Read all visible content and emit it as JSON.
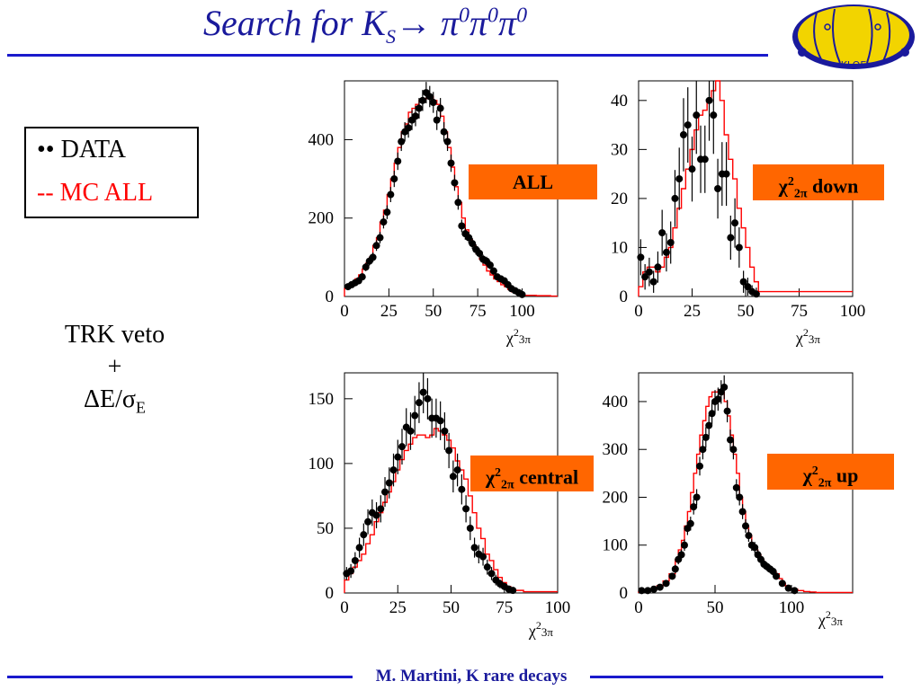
{
  "title": {
    "prefix": "Search for K",
    "sub": "S",
    "arrow": "→",
    "pi1": " π",
    "sup1": "0",
    "pi2": "π",
    "sup2": "0",
    "pi3": "π",
    "sup3": "0"
  },
  "logo": {
    "text": "KLOE"
  },
  "legend": {
    "data_label": "•• DATA",
    "mc_label": "--  MC ALL"
  },
  "selection": {
    "line1": "TRK veto",
    "line2": "+",
    "line3_prefix": "ΔE/σ",
    "line3_sub": "E"
  },
  "footer": {
    "text": "M. Martini, K rare decays"
  },
  "colors": {
    "title": "#1a1a9c",
    "rule": "#1a1acc",
    "mc": "#ff0000",
    "data": "#000000",
    "tag": "#ff6600"
  },
  "chart_data": [
    {
      "type": "histogram",
      "label": "ALL",
      "xlabel": "χ²3π",
      "xlim": [
        0,
        120
      ],
      "ylim": [
        0,
        550
      ],
      "xticks": [
        0,
        25,
        50,
        75,
        100
      ],
      "yticks": [
        0,
        200,
        400
      ],
      "mc_x": [
        0,
        2,
        4,
        6,
        8,
        10,
        12,
        14,
        16,
        18,
        20,
        22,
        24,
        26,
        28,
        30,
        32,
        34,
        36,
        38,
        40,
        42,
        44,
        46,
        48,
        50,
        52,
        54,
        56,
        58,
        60,
        62,
        64,
        66,
        68,
        70,
        72,
        74,
        76,
        78,
        80,
        82,
        84,
        86,
        88,
        90,
        92,
        94,
        96,
        98,
        100,
        104,
        108,
        112,
        116,
        120
      ],
      "mc_y": [
        20,
        30,
        35,
        45,
        55,
        70,
        85,
        100,
        130,
        150,
        190,
        220,
        260,
        300,
        340,
        380,
        420,
        440,
        470,
        480,
        490,
        500,
        505,
        505,
        510,
        500,
        490,
        460,
        420,
        380,
        330,
        280,
        240,
        200,
        170,
        145,
        130,
        110,
        95,
        80,
        65,
        55,
        45,
        38,
        30,
        25,
        18,
        12,
        8,
        5,
        3,
        3,
        2,
        2,
        1,
        1
      ],
      "data": [
        [
          2,
          25
        ],
        [
          4,
          30
        ],
        [
          6,
          35
        ],
        [
          8,
          40
        ],
        [
          10,
          50
        ],
        [
          12,
          75
        ],
        [
          14,
          90
        ],
        [
          16,
          100
        ],
        [
          18,
          130
        ],
        [
          20,
          150
        ],
        [
          22,
          190
        ],
        [
          24,
          215
        ],
        [
          26,
          260
        ],
        [
          28,
          300
        ],
        [
          30,
          345
        ],
        [
          32,
          395
        ],
        [
          34,
          420
        ],
        [
          36,
          430
        ],
        [
          38,
          450
        ],
        [
          40,
          460
        ],
        [
          42,
          480
        ],
        [
          44,
          500
        ],
        [
          46,
          520
        ],
        [
          48,
          510
        ],
        [
          50,
          495
        ],
        [
          52,
          450
        ],
        [
          54,
          480
        ],
        [
          56,
          420
        ],
        [
          58,
          395
        ],
        [
          60,
          340
        ],
        [
          62,
          290
        ],
        [
          64,
          240
        ],
        [
          66,
          180
        ],
        [
          68,
          160
        ],
        [
          70,
          150
        ],
        [
          72,
          135
        ],
        [
          74,
          120
        ],
        [
          76,
          110
        ],
        [
          78,
          95
        ],
        [
          80,
          90
        ],
        [
          82,
          80
        ],
        [
          84,
          65
        ],
        [
          86,
          50
        ],
        [
          88,
          45
        ],
        [
          90,
          40
        ],
        [
          92,
          30
        ],
        [
          94,
          20
        ],
        [
          96,
          15
        ],
        [
          98,
          10
        ],
        [
          100,
          5
        ]
      ]
    },
    {
      "type": "histogram",
      "label": "χ²2π down",
      "xlabel": "χ²3π",
      "xlim": [
        0,
        100
      ],
      "ylim": [
        0,
        44
      ],
      "xticks": [
        0,
        25,
        50,
        75,
        100
      ],
      "yticks": [
        0,
        10,
        20,
        30,
        40
      ],
      "mc_x": [
        0,
        2,
        4,
        6,
        8,
        10,
        12,
        14,
        16,
        18,
        20,
        22,
        24,
        26,
        28,
        30,
        32,
        34,
        36,
        38,
        40,
        42,
        44,
        46,
        48,
        50,
        52,
        54,
        56,
        58,
        60,
        64,
        68,
        72,
        76,
        80,
        84,
        88,
        92,
        96,
        100
      ],
      "mc_y": [
        2,
        5,
        6,
        6,
        5,
        6,
        8,
        10,
        14,
        18,
        22,
        26,
        30,
        34,
        37,
        38,
        40,
        42,
        44,
        40,
        33,
        28,
        24,
        18,
        14,
        10,
        6,
        3,
        1,
        1,
        1,
        1,
        1,
        1,
        1,
        1,
        1,
        1,
        1,
        1,
        1
      ],
      "data": [
        [
          1,
          8
        ],
        [
          3,
          4
        ],
        [
          5,
          5
        ],
        [
          7,
          3
        ],
        [
          9,
          6
        ],
        [
          11,
          13
        ],
        [
          13,
          9
        ],
        [
          15,
          11
        ],
        [
          17,
          20
        ],
        [
          19,
          24
        ],
        [
          21,
          33
        ],
        [
          23,
          35
        ],
        [
          25,
          26
        ],
        [
          27,
          37
        ],
        [
          29,
          28
        ],
        [
          31,
          28
        ],
        [
          33,
          40
        ],
        [
          35,
          37
        ],
        [
          37,
          22
        ],
        [
          39,
          25
        ],
        [
          41,
          25
        ],
        [
          43,
          12
        ],
        [
          45,
          15
        ],
        [
          47,
          10
        ],
        [
          49,
          3
        ],
        [
          51,
          2
        ],
        [
          53,
          1
        ],
        [
          55,
          0.5
        ]
      ]
    },
    {
      "type": "histogram",
      "label": "χ²2π central",
      "xlabel": "χ²3π",
      "xlim": [
        0,
        100
      ],
      "ylim": [
        0,
        170
      ],
      "xticks": [
        0,
        25,
        50,
        75,
        100
      ],
      "yticks": [
        0,
        50,
        100,
        150
      ],
      "mc_x": [
        0,
        2,
        4,
        6,
        8,
        10,
        12,
        14,
        16,
        18,
        20,
        22,
        24,
        26,
        28,
        30,
        32,
        34,
        36,
        38,
        40,
        42,
        44,
        46,
        48,
        50,
        52,
        54,
        56,
        58,
        60,
        62,
        64,
        66,
        68,
        70,
        72,
        74,
        76,
        78,
        80,
        84,
        88,
        92,
        96,
        100
      ],
      "mc_y": [
        10,
        15,
        20,
        25,
        30,
        38,
        45,
        55,
        62,
        70,
        78,
        86,
        95,
        103,
        110,
        115,
        120,
        122,
        122,
        120,
        122,
        127,
        125,
        122,
        118,
        112,
        102,
        95,
        88,
        75,
        62,
        50,
        42,
        30,
        25,
        18,
        12,
        8,
        5,
        3,
        2,
        1,
        1,
        1,
        1,
        1
      ],
      "data": [
        [
          1,
          15
        ],
        [
          3,
          17
        ],
        [
          5,
          25
        ],
        [
          7,
          35
        ],
        [
          9,
          45
        ],
        [
          11,
          55
        ],
        [
          13,
          62
        ],
        [
          15,
          60
        ],
        [
          17,
          65
        ],
        [
          19,
          78
        ],
        [
          21,
          85
        ],
        [
          23,
          95
        ],
        [
          25,
          105
        ],
        [
          27,
          113
        ],
        [
          29,
          128
        ],
        [
          31,
          125
        ],
        [
          33,
          137
        ],
        [
          35,
          147
        ],
        [
          37,
          155
        ],
        [
          39,
          150
        ],
        [
          41,
          135
        ],
        [
          43,
          135
        ],
        [
          45,
          133
        ],
        [
          47,
          125
        ],
        [
          49,
          110
        ],
        [
          51,
          90
        ],
        [
          53,
          95
        ],
        [
          55,
          80
        ],
        [
          57,
          65
        ],
        [
          59,
          50
        ],
        [
          61,
          35
        ],
        [
          63,
          30
        ],
        [
          65,
          28
        ],
        [
          67,
          20
        ],
        [
          69,
          15
        ],
        [
          71,
          10
        ],
        [
          73,
          7
        ],
        [
          75,
          5
        ],
        [
          77,
          3
        ],
        [
          79,
          2
        ]
      ]
    },
    {
      "type": "histogram",
      "label": "χ²2π up",
      "xlabel": "χ²3π",
      "xlim": [
        0,
        140
      ],
      "ylim": [
        0,
        460
      ],
      "xticks": [
        0,
        50,
        100
      ],
      "yticks": [
        0,
        100,
        200,
        300,
        400
      ],
      "mc_x": [
        0,
        4,
        8,
        12,
        16,
        20,
        24,
        26,
        28,
        30,
        32,
        34,
        36,
        38,
        40,
        42,
        44,
        46,
        48,
        50,
        52,
        54,
        56,
        58,
        60,
        62,
        64,
        66,
        68,
        70,
        72,
        74,
        76,
        78,
        80,
        82,
        84,
        86,
        88,
        90,
        92,
        94,
        96,
        98,
        100,
        104,
        108,
        112,
        116,
        120,
        130,
        140
      ],
      "mc_y": [
        3,
        5,
        8,
        15,
        25,
        40,
        70,
        90,
        110,
        140,
        170,
        210,
        250,
        290,
        330,
        360,
        390,
        410,
        420,
        420,
        425,
        420,
        400,
        370,
        330,
        290,
        250,
        200,
        170,
        140,
        120,
        100,
        90,
        80,
        70,
        60,
        55,
        50,
        45,
        40,
        30,
        20,
        15,
        10,
        8,
        5,
        3,
        2,
        1,
        1,
        1,
        1
      ],
      "data": [
        [
          2,
          5
        ],
        [
          6,
          5
        ],
        [
          10,
          8
        ],
        [
          14,
          12
        ],
        [
          18,
          20
        ],
        [
          22,
          35
        ],
        [
          24,
          50
        ],
        [
          26,
          70
        ],
        [
          28,
          80
        ],
        [
          30,
          100
        ],
        [
          32,
          135
        ],
        [
          34,
          145
        ],
        [
          36,
          180
        ],
        [
          38,
          200
        ],
        [
          40,
          265
        ],
        [
          42,
          300
        ],
        [
          44,
          325
        ],
        [
          46,
          350
        ],
        [
          48,
          375
        ],
        [
          50,
          400
        ],
        [
          52,
          405
        ],
        [
          54,
          420
        ],
        [
          56,
          430
        ],
        [
          58,
          380
        ],
        [
          60,
          320
        ],
        [
          62,
          300
        ],
        [
          64,
          220
        ],
        [
          66,
          200
        ],
        [
          68,
          170
        ],
        [
          70,
          140
        ],
        [
          72,
          120
        ],
        [
          74,
          100
        ],
        [
          76,
          95
        ],
        [
          78,
          80
        ],
        [
          80,
          70
        ],
        [
          82,
          60
        ],
        [
          84,
          55
        ],
        [
          86,
          50
        ],
        [
          88,
          45
        ],
        [
          90,
          35
        ],
        [
          94,
          20
        ],
        [
          98,
          10
        ],
        [
          102,
          5
        ]
      ]
    }
  ]
}
